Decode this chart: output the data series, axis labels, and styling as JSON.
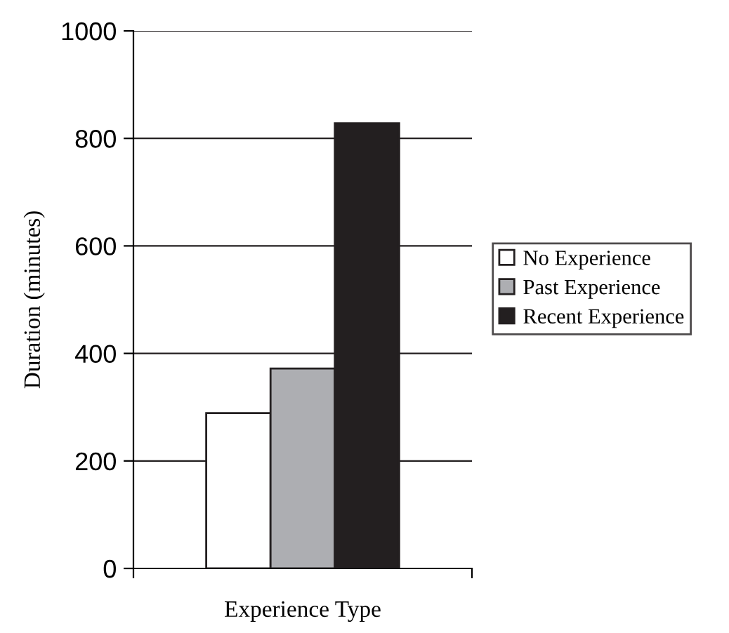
{
  "chart_data": {
    "type": "bar",
    "xlabel": "Experience Type",
    "ylabel": "Duration (minutes)",
    "categories": [
      null
    ],
    "series": [
      {
        "name": "No Experience",
        "color": "#ffffff",
        "values": [
          289
        ]
      },
      {
        "name": "Past Experience",
        "color": "#adaeb2",
        "values": [
          372
        ]
      },
      {
        "name": "Recent Experience",
        "color": "#231f20",
        "values": [
          828
        ]
      }
    ],
    "ylim": [
      0,
      1000
    ],
    "yticks": [
      0,
      200,
      400,
      600,
      800,
      1000
    ],
    "grid": "y",
    "legend": "right"
  }
}
